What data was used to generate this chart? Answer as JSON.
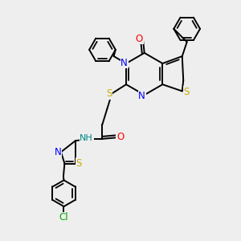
{
  "background_color": "#eeeeee",
  "figure_size": [
    3.0,
    3.0
  ],
  "dpi": 100,
  "ring_lw": 1.4,
  "bond_lw": 1.4,
  "label_fontsize": 8.5,
  "colors": {
    "N": "#0000ff",
    "O": "#ff0000",
    "S": "#ccaa00",
    "Cl": "#00aa00",
    "NH": "#008888",
    "C": "#000000"
  }
}
